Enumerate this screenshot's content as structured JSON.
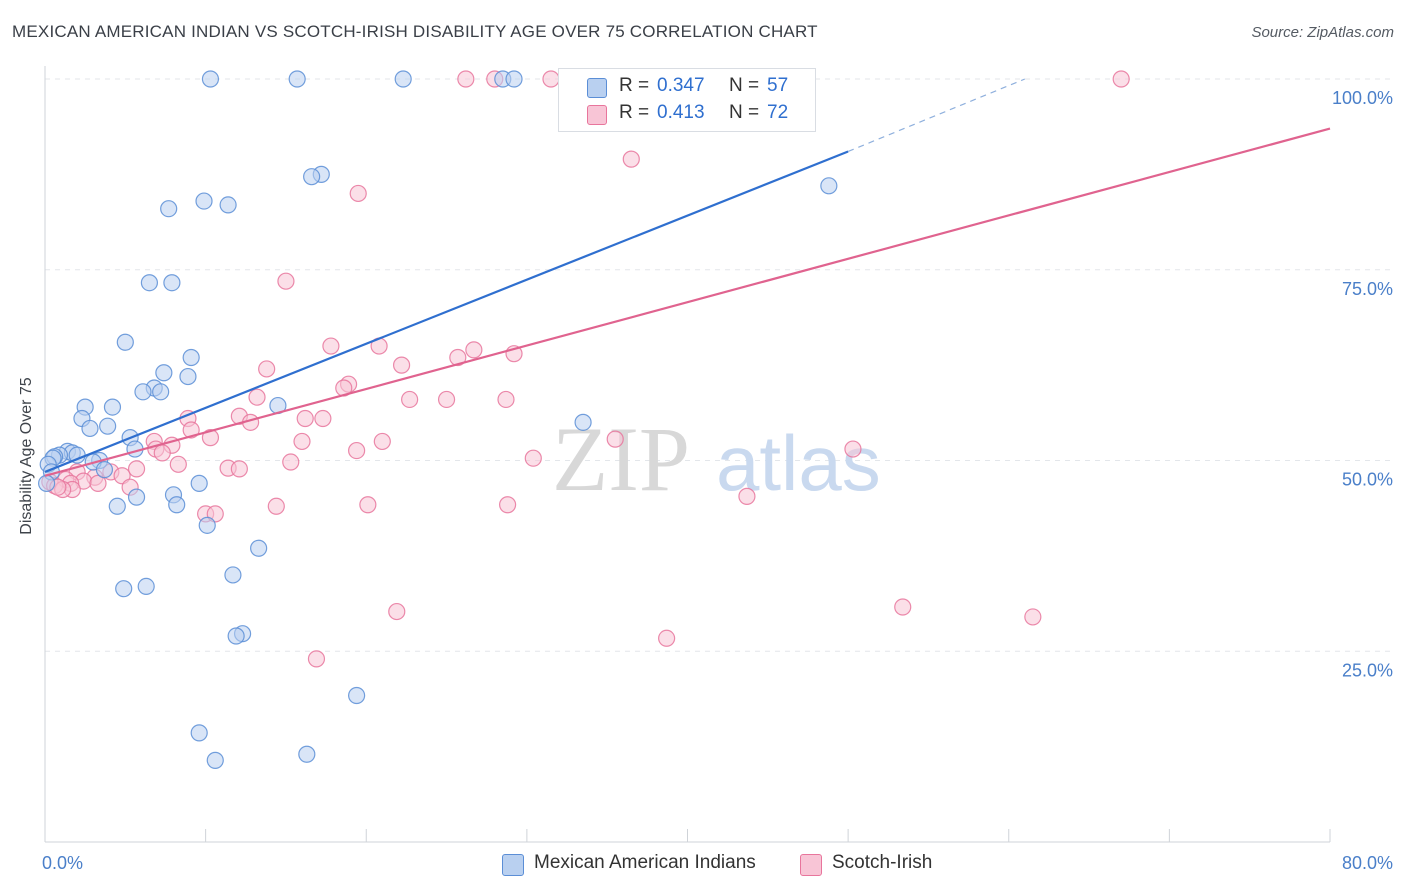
{
  "title": "MEXICAN AMERICAN INDIAN VS SCOTCH-IRISH DISABILITY AGE OVER 75 CORRELATION CHART",
  "source": "Source: ZipAtlas.com",
  "watermark": {
    "zip": "ZIP",
    "atlas": "atlas"
  },
  "legend": {
    "r_label": "R =",
    "n_label": "N =",
    "series": [
      {
        "r": "0.347",
        "n": "57",
        "color": "#5b8ed6",
        "fill": "#b9d0f0"
      },
      {
        "r": "0.413",
        "n": "72",
        "color": "#e8759c",
        "fill": "#f8c5d6"
      }
    ]
  },
  "bottom_legend": [
    "Mexican American Indians",
    "Scotch-Irish"
  ],
  "chart_data": {
    "type": "scatter",
    "title": "MEXICAN AMERICAN INDIAN VS SCOTCH-IRISH DISABILITY AGE OVER 75 CORRELATION CHART",
    "xlabel": "",
    "ylabel": "Disability Age Over 75",
    "xlim": [
      0,
      80
    ],
    "ylim": [
      0,
      100
    ],
    "x_tick_labels": [
      "0.0%",
      "80.0%"
    ],
    "y_tick_labels": [
      "100.0%",
      "75.0%",
      "50.0%",
      "25.0%"
    ],
    "y_ticks": [
      100,
      75,
      50,
      25
    ],
    "grid": true,
    "legend_position": "top-center",
    "series": [
      {
        "name": "Mexican American Indians",
        "color": "#5b8ed6",
        "fill": "#b9d0f0",
        "trend": {
          "x": [
            0,
            50
          ],
          "y": [
            48.5,
            90.5
          ],
          "dashed_to": [
            61,
            100
          ]
        },
        "points": [
          [
            10.3,
            100
          ],
          [
            15.7,
            100
          ],
          [
            22.3,
            100
          ],
          [
            28.5,
            100
          ],
          [
            29.2,
            100
          ],
          [
            17.2,
            87.5
          ],
          [
            16.6,
            87.2
          ],
          [
            48.8,
            86
          ],
          [
            9.9,
            84
          ],
          [
            11.4,
            83.5
          ],
          [
            7.7,
            83
          ],
          [
            6.5,
            73.3
          ],
          [
            7.9,
            73.3
          ],
          [
            5.0,
            65.5
          ],
          [
            9.1,
            63.5
          ],
          [
            7.4,
            61.5
          ],
          [
            8.9,
            61
          ],
          [
            6.8,
            59.5
          ],
          [
            6.1,
            59
          ],
          [
            7.2,
            59
          ],
          [
            2.5,
            57
          ],
          [
            4.2,
            57
          ],
          [
            14.5,
            57.2
          ],
          [
            2.3,
            55.5
          ],
          [
            3.9,
            54.5
          ],
          [
            2.8,
            54.2
          ],
          [
            33.5,
            55
          ],
          [
            5.3,
            53
          ],
          [
            5.6,
            51.5
          ],
          [
            1.4,
            51.2
          ],
          [
            1.7,
            51
          ],
          [
            2.0,
            50.7
          ],
          [
            0.9,
            50.7
          ],
          [
            0.6,
            50.5
          ],
          [
            0.5,
            50.3
          ],
          [
            3.4,
            50
          ],
          [
            3.0,
            49.8
          ],
          [
            0.2,
            49.5
          ],
          [
            3.7,
            48.8
          ],
          [
            0.4,
            48.5
          ],
          [
            0.1,
            47
          ],
          [
            5.7,
            45.2
          ],
          [
            8.0,
            45.5
          ],
          [
            9.6,
            47
          ],
          [
            8.2,
            44.2
          ],
          [
            4.5,
            44
          ],
          [
            10.1,
            41.5
          ],
          [
            13.3,
            38.5
          ],
          [
            11.7,
            35
          ],
          [
            6.3,
            33.5
          ],
          [
            4.9,
            33.2
          ],
          [
            12.3,
            27.3
          ],
          [
            11.9,
            27
          ],
          [
            19.4,
            19.2
          ],
          [
            9.6,
            14.3
          ],
          [
            10.6,
            10.7
          ],
          [
            16.3,
            11.5
          ]
        ]
      },
      {
        "name": "Scotch-Irish",
        "color": "#e8759c",
        "fill": "#f8c5d6",
        "trend": {
          "x": [
            0,
            80
          ],
          "y": [
            48,
            93.5
          ]
        },
        "points": [
          [
            26.2,
            100
          ],
          [
            28.0,
            100
          ],
          [
            31.5,
            100
          ],
          [
            34.0,
            100
          ],
          [
            38.0,
            100
          ],
          [
            42.5,
            100
          ],
          [
            44.5,
            100
          ],
          [
            67.0,
            100
          ],
          [
            35.6,
            94.5
          ],
          [
            36.5,
            89.5
          ],
          [
            19.5,
            85
          ],
          [
            15.0,
            73.5
          ],
          [
            17.8,
            65
          ],
          [
            20.8,
            65
          ],
          [
            26.7,
            64.5
          ],
          [
            25.7,
            63.5
          ],
          [
            29.2,
            64
          ],
          [
            22.2,
            62.5
          ],
          [
            13.8,
            62
          ],
          [
            18.9,
            60
          ],
          [
            18.6,
            59.5
          ],
          [
            22.7,
            58
          ],
          [
            25.0,
            58
          ],
          [
            13.2,
            58.3
          ],
          [
            8.9,
            55.5
          ],
          [
            12.1,
            55.8
          ],
          [
            17.3,
            55.5
          ],
          [
            16.2,
            55.5
          ],
          [
            12.8,
            55
          ],
          [
            9.1,
            54
          ],
          [
            10.3,
            53
          ],
          [
            6.8,
            52.5
          ],
          [
            21.0,
            52.5
          ],
          [
            16.0,
            52.5
          ],
          [
            7.9,
            52
          ],
          [
            35.5,
            52.8
          ],
          [
            6.9,
            51.5
          ],
          [
            19.4,
            51.3
          ],
          [
            7.3,
            51
          ],
          [
            50.3,
            51.5
          ],
          [
            30.4,
            50.3
          ],
          [
            15.3,
            49.8
          ],
          [
            8.3,
            49.5
          ],
          [
            11.4,
            49
          ],
          [
            12.1,
            48.9
          ],
          [
            5.7,
            48.9
          ],
          [
            4.1,
            48.5
          ],
          [
            4.8,
            48
          ],
          [
            2.0,
            48.5
          ],
          [
            3.1,
            47.8
          ],
          [
            1.3,
            47.5
          ],
          [
            2.4,
            47.3
          ],
          [
            1.6,
            47
          ],
          [
            0.3,
            47.2
          ],
          [
            0.6,
            46.7
          ],
          [
            3.3,
            47
          ],
          [
            5.3,
            46.5
          ],
          [
            1.7,
            46.2
          ],
          [
            1.1,
            46.2
          ],
          [
            0.8,
            46.5
          ],
          [
            43.7,
            45.3
          ],
          [
            10.0,
            43
          ],
          [
            10.6,
            43
          ],
          [
            20.1,
            44.2
          ],
          [
            14.4,
            44
          ],
          [
            28.8,
            44.2
          ],
          [
            21.9,
            30.2
          ],
          [
            53.4,
            30.8
          ],
          [
            61.5,
            29.5
          ],
          [
            38.7,
            26.7
          ],
          [
            16.9,
            24
          ],
          [
            28.7,
            58
          ]
        ]
      }
    ]
  }
}
